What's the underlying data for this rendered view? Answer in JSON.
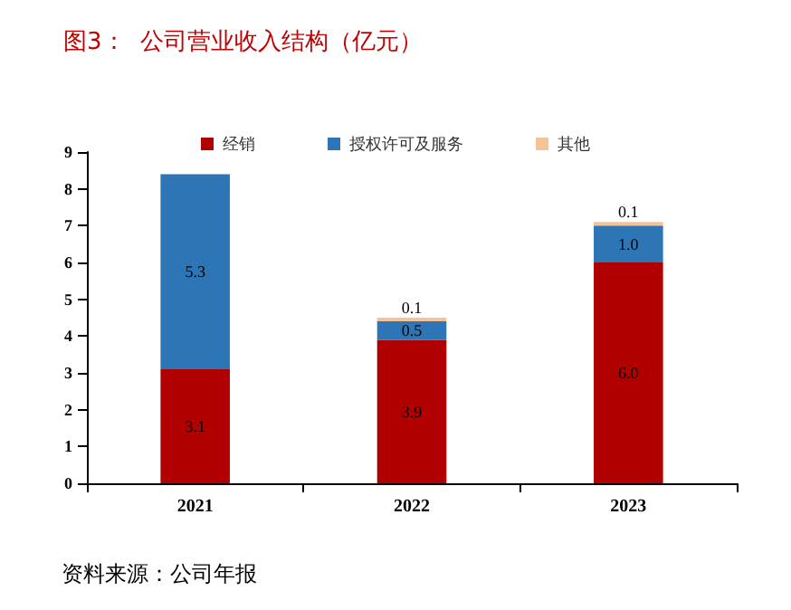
{
  "chart_data": {
    "type": "bar",
    "title": "图3：  公司营业收入结构（亿元）",
    "annotations": [
      "资料来源：公司年报"
    ],
    "categories": [
      "2021",
      "2022",
      "2023"
    ],
    "stacked": true,
    "series": [
      {
        "name": "经销",
        "color": "#b00000",
        "values": [
          3.1,
          3.9,
          6.0
        ],
        "value_labels": [
          "3.1",
          "3.9",
          "6.0"
        ]
      },
      {
        "name": "授权许可及服务",
        "color": "#2e75b6",
        "values": [
          5.3,
          0.5,
          1.0
        ],
        "value_labels": [
          "5.3",
          "0.5",
          "1.0"
        ]
      },
      {
        "name": "其他",
        "color": "#f4c397",
        "values": [
          null,
          0.1,
          0.1
        ],
        "value_labels": [
          null,
          "0.1",
          "0.1"
        ]
      }
    ],
    "ylim": [
      0,
      9
    ],
    "yticks": [
      0,
      1,
      2,
      3,
      4,
      5,
      6,
      7,
      8,
      9
    ],
    "grid": false,
    "legend": "top"
  }
}
